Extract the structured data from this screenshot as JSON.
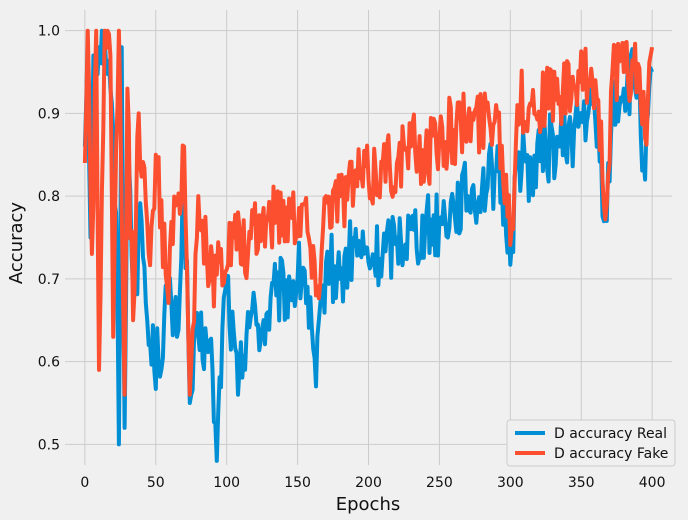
{
  "chart_data": {
    "type": "line",
    "title": "",
    "xlabel": "Epochs",
    "ylabel": "Accuracy",
    "xlim": [
      -14,
      414
    ],
    "ylim": [
      0.475,
      1.025
    ],
    "xticks": [
      0,
      50,
      100,
      150,
      200,
      250,
      300,
      350,
      400
    ],
    "yticks": [
      0.5,
      0.6,
      0.7,
      0.8,
      0.9,
      1.0
    ],
    "xtick_labels": [
      "0",
      "50",
      "100",
      "150",
      "200",
      "250",
      "300",
      "350",
      "400"
    ],
    "ytick_labels": [
      "0.5",
      "0.6",
      "0.7",
      "0.8",
      "0.9",
      "1.0"
    ],
    "grid": true,
    "legend_position": "lower-right",
    "series": [
      {
        "name": "D accuracy Real",
        "color": "#008fd5",
        "anchors": [
          [
            0,
            0.86
          ],
          [
            2,
            0.99
          ],
          [
            4,
            0.75
          ],
          [
            6,
            0.97
          ],
          [
            10,
            0.98
          ],
          [
            14,
            0.99
          ],
          [
            18,
            0.93
          ],
          [
            22,
            0.78
          ],
          [
            24,
            0.5
          ],
          [
            26,
            0.98
          ],
          [
            28,
            0.52
          ],
          [
            30,
            0.86
          ],
          [
            35,
            0.69
          ],
          [
            40,
            0.77
          ],
          [
            45,
            0.62
          ],
          [
            52,
            0.6
          ],
          [
            58,
            0.68
          ],
          [
            65,
            0.63
          ],
          [
            70,
            0.82
          ],
          [
            74,
            0.55
          ],
          [
            80,
            0.63
          ],
          [
            86,
            0.62
          ],
          [
            90,
            0.59
          ],
          [
            93,
            0.48
          ],
          [
            97,
            0.64
          ],
          [
            100,
            0.7
          ],
          [
            108,
            0.56
          ],
          [
            115,
            0.66
          ],
          [
            125,
            0.64
          ],
          [
            135,
            0.68
          ],
          [
            145,
            0.69
          ],
          [
            155,
            0.71
          ],
          [
            163,
            0.57
          ],
          [
            170,
            0.72
          ],
          [
            180,
            0.7
          ],
          [
            190,
            0.74
          ],
          [
            200,
            0.72
          ],
          [
            210,
            0.73
          ],
          [
            220,
            0.75
          ],
          [
            230,
            0.76
          ],
          [
            240,
            0.76
          ],
          [
            250,
            0.77
          ],
          [
            260,
            0.79
          ],
          [
            270,
            0.8
          ],
          [
            280,
            0.81
          ],
          [
            290,
            0.83
          ],
          [
            301,
            0.74
          ],
          [
            305,
            0.85
          ],
          [
            315,
            0.83
          ],
          [
            325,
            0.86
          ],
          [
            335,
            0.86
          ],
          [
            345,
            0.88
          ],
          [
            355,
            0.9
          ],
          [
            360,
            0.89
          ],
          [
            368,
            0.77
          ],
          [
            372,
            0.91
          ],
          [
            380,
            0.93
          ],
          [
            390,
            0.94
          ],
          [
            395,
            0.82
          ],
          [
            400,
            0.95
          ]
        ]
      },
      {
        "name": "D accuracy Fake",
        "color": "#fc4f30",
        "anchors": [
          [
            0,
            0.84
          ],
          [
            2,
            1.0
          ],
          [
            5,
            0.73
          ],
          [
            8,
            1.0
          ],
          [
            10,
            0.59
          ],
          [
            14,
            1.0
          ],
          [
            18,
            0.97
          ],
          [
            20,
            0.63
          ],
          [
            24,
            1.0
          ],
          [
            28,
            0.56
          ],
          [
            30,
            0.93
          ],
          [
            34,
            0.65
          ],
          [
            38,
            0.9
          ],
          [
            45,
            0.73
          ],
          [
            50,
            0.85
          ],
          [
            58,
            0.69
          ],
          [
            65,
            0.79
          ],
          [
            70,
            0.86
          ],
          [
            74,
            0.56
          ],
          [
            80,
            0.8
          ],
          [
            88,
            0.7
          ],
          [
            95,
            0.72
          ],
          [
            105,
            0.75
          ],
          [
            115,
            0.73
          ],
          [
            125,
            0.77
          ],
          [
            135,
            0.78
          ],
          [
            145,
            0.78
          ],
          [
            155,
            0.79
          ],
          [
            163,
            0.68
          ],
          [
            170,
            0.8
          ],
          [
            180,
            0.8
          ],
          [
            190,
            0.82
          ],
          [
            200,
            0.82
          ],
          [
            210,
            0.84
          ],
          [
            220,
            0.84
          ],
          [
            230,
            0.86
          ],
          [
            240,
            0.85
          ],
          [
            250,
            0.87
          ],
          [
            260,
            0.88
          ],
          [
            270,
            0.89
          ],
          [
            280,
            0.89
          ],
          [
            290,
            0.91
          ],
          [
            301,
            0.76
          ],
          [
            305,
            0.91
          ],
          [
            315,
            0.91
          ],
          [
            325,
            0.92
          ],
          [
            335,
            0.92
          ],
          [
            345,
            0.93
          ],
          [
            355,
            0.94
          ],
          [
            360,
            0.94
          ],
          [
            368,
            0.79
          ],
          [
            372,
            0.95
          ],
          [
            380,
            0.95
          ],
          [
            390,
            0.96
          ],
          [
            395,
            0.87
          ],
          [
            400,
            0.98
          ]
        ]
      }
    ]
  }
}
